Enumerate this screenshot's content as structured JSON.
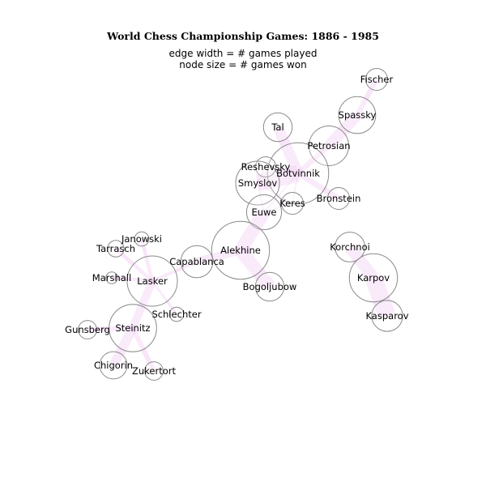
{
  "title": "World Chess Championship Games: 1886 - 1985",
  "subtitle_lines": [
    "edge width = # games played",
    "node size = # games won"
  ],
  "colors": {
    "edge": "#e8a9ec",
    "node_stroke": "#8a8a8a",
    "node_fill": "#ffffff"
  },
  "players": [
    {
      "id": "Fischer",
      "label": "Fischer",
      "wins": 7
    },
    {
      "id": "Spassky",
      "label": "Spassky",
      "wins": 20
    },
    {
      "id": "Tal",
      "label": "Tal",
      "wins": 12
    },
    {
      "id": "Petrosian",
      "label": "Petrosian",
      "wins": 23
    },
    {
      "id": "Botvinnik",
      "label": "Botvinnik",
      "wins": 55
    },
    {
      "id": "Reshevsky",
      "label": "Reshevsky",
      "wins": 6
    },
    {
      "id": "Smyslov",
      "label": "Smyslov",
      "wins": 28
    },
    {
      "id": "Keres",
      "label": "Keres",
      "wins": 7
    },
    {
      "id": "Bronstein",
      "label": "Bronstein",
      "wins": 7
    },
    {
      "id": "Euwe",
      "label": "Euwe",
      "wins": 18
    },
    {
      "id": "Korchnoi",
      "label": "Korchnoi",
      "wins": 13
    },
    {
      "id": "Alekhine",
      "label": "Alekhine",
      "wins": 49
    },
    {
      "id": "Karpov",
      "label": "Karpov",
      "wins": 34
    },
    {
      "id": "Capablanca",
      "label": "Capablanca",
      "wins": 15
    },
    {
      "id": "Bogoljubow",
      "label": "Bogoljubow",
      "wins": 12
    },
    {
      "id": "Janowski",
      "label": "Janowski",
      "wins": 3
    },
    {
      "id": "Tarrasch",
      "label": "Tarrasch",
      "wins": 4
    },
    {
      "id": "Marshall",
      "label": "Marshall",
      "wins": 2
    },
    {
      "id": "Lasker",
      "label": "Lasker",
      "wins": 37
    },
    {
      "id": "Schlechter",
      "label": "Schlechter",
      "wins": 3
    },
    {
      "id": "Kasparov",
      "label": "Kasparov",
      "wins": 14
    },
    {
      "id": "Gunsberg",
      "label": "Gunsberg",
      "wins": 5
    },
    {
      "id": "Steinitz",
      "label": "Steinitz",
      "wins": 33
    },
    {
      "id": "Chigorin",
      "label": "Chigorin",
      "wins": 11
    },
    {
      "id": "Zukertort",
      "label": "Zukertort",
      "wins": 5
    }
  ],
  "matches": [
    {
      "a": "Fischer",
      "b": "Spassky",
      "games": 21
    },
    {
      "a": "Spassky",
      "b": "Petrosian",
      "games": 47
    },
    {
      "a": "Petrosian",
      "b": "Botvinnik",
      "games": 22
    },
    {
      "a": "Tal",
      "b": "Botvinnik",
      "games": 45
    },
    {
      "a": "Botvinnik",
      "b": "Smyslov",
      "games": 69
    },
    {
      "a": "Botvinnik",
      "b": "Bronstein",
      "games": 24
    },
    {
      "a": "Botvinnik",
      "b": "Keres",
      "games": 5
    },
    {
      "a": "Botvinnik",
      "b": "Euwe",
      "games": 5
    },
    {
      "a": "Botvinnik",
      "b": "Reshevsky",
      "games": 5
    },
    {
      "a": "Smyslov",
      "b": "Keres",
      "games": 5
    },
    {
      "a": "Smyslov",
      "b": "Reshevsky",
      "games": 5
    },
    {
      "a": "Smyslov",
      "b": "Euwe",
      "games": 5
    },
    {
      "a": "Keres",
      "b": "Euwe",
      "games": 5
    },
    {
      "a": "Euwe",
      "b": "Alekhine",
      "games": 55
    },
    {
      "a": "Alekhine",
      "b": "Capablanca",
      "games": 34
    },
    {
      "a": "Alekhine",
      "b": "Bogoljubow",
      "games": 55
    },
    {
      "a": "Capablanca",
      "b": "Lasker",
      "games": 14
    },
    {
      "a": "Lasker",
      "b": "Janowski",
      "games": 15
    },
    {
      "a": "Lasker",
      "b": "Tarrasch",
      "games": 16
    },
    {
      "a": "Lasker",
      "b": "Marshall",
      "games": 15
    },
    {
      "a": "Lasker",
      "b": "Schlechter",
      "games": 10
    },
    {
      "a": "Lasker",
      "b": "Steinitz",
      "games": 34
    },
    {
      "a": "Steinitz",
      "b": "Gunsberg",
      "games": 19
    },
    {
      "a": "Steinitz",
      "b": "Chigorin",
      "games": 40
    },
    {
      "a": "Steinitz",
      "b": "Zukertort",
      "games": 20
    },
    {
      "a": "Korchnoi",
      "b": "Karpov",
      "games": 50
    },
    {
      "a": "Karpov",
      "b": "Kasparov",
      "games": 72
    }
  ]
}
